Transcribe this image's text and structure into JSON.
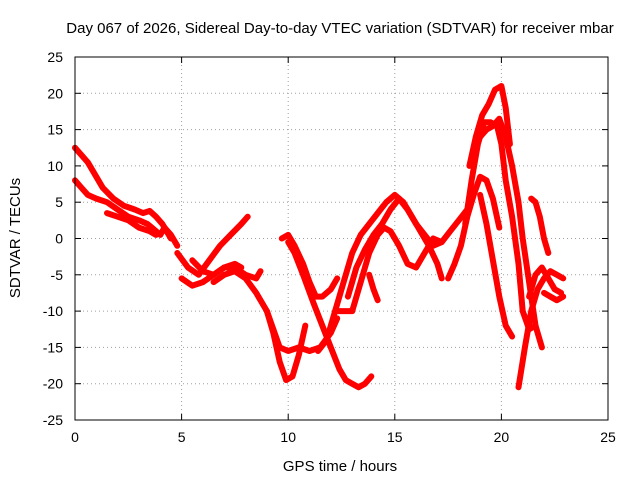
{
  "chart_data": {
    "type": "scatter",
    "title": "Day 067 of 2026, Sidereal Day-to-day VTEC variation (SDTVAR) for receiver mbar",
    "xlabel": "GPS time / hours",
    "ylabel": "SDTVAR / TECUs",
    "xlim": [
      0,
      25
    ],
    "ylim": [
      -25,
      25
    ],
    "xticks": [
      0,
      5,
      10,
      15,
      20,
      25
    ],
    "yticks": [
      -25,
      -20,
      -15,
      -10,
      -5,
      0,
      5,
      10,
      15,
      20,
      25
    ],
    "grid": true,
    "marker": "plus",
    "color": "#ff0000",
    "series": [
      {
        "x": [
          0.0,
          0.3,
          0.6,
          0.9,
          1.3,
          1.8,
          2.3,
          2.8,
          3.2,
          3.5,
          3.8,
          4.1,
          4.5
        ],
        "y": [
          12.5,
          11.5,
          10.5,
          9.0,
          7.0,
          5.5,
          4.5,
          4.0,
          3.5,
          3.8,
          3.0,
          2.0,
          0.0
        ]
      },
      {
        "x": [
          0.0,
          0.3,
          0.6,
          1.0,
          1.5,
          2.0,
          2.5,
          3.0,
          3.4,
          3.6,
          3.8,
          4.0,
          4.2,
          4.5,
          4.8
        ],
        "y": [
          8.0,
          7.0,
          6.0,
          5.5,
          5.0,
          4.0,
          3.0,
          2.5,
          2.0,
          1.5,
          1.0,
          0.5,
          1.5,
          0.5,
          -1.0
        ]
      },
      {
        "x": [
          1.5,
          2.0,
          2.5,
          3.0,
          3.5,
          3.8
        ],
        "y": [
          3.5,
          3.0,
          2.5,
          1.5,
          1.0,
          0.5
        ]
      },
      {
        "x": [
          4.8,
          5.3,
          5.8,
          6.3,
          6.8,
          7.3,
          7.8,
          8.1
        ],
        "y": [
          -2.0,
          -4.0,
          -5.0,
          -3.0,
          -1.0,
          0.5,
          2.0,
          3.0
        ]
      },
      {
        "x": [
          5.0,
          5.5,
          6.0,
          6.5,
          7.0,
          7.5,
          8.0,
          8.5,
          8.7
        ],
        "y": [
          -5.5,
          -6.5,
          -6.0,
          -5.0,
          -4.0,
          -4.0,
          -5.0,
          -5.5,
          -4.5
        ]
      },
      {
        "x": [
          5.5,
          6.0,
          6.5,
          7.0,
          7.5,
          7.8
        ],
        "y": [
          -3.0,
          -4.5,
          -5.0,
          -4.0,
          -3.5,
          -4.0
        ]
      },
      {
        "x": [
          6.5,
          7.0,
          7.5,
          8.0,
          8.5,
          9.0,
          9.3,
          9.6,
          9.9,
          10.2,
          10.5,
          10.8
        ],
        "y": [
          -6.0,
          -5.0,
          -4.5,
          -5.5,
          -7.5,
          -10.0,
          -13.0,
          -17.0,
          -19.5,
          -19.0,
          -16.0,
          -12.0
        ]
      },
      {
        "x": [
          9.0,
          9.3,
          9.6,
          10.0,
          10.5,
          11.0,
          11.5,
          12.0,
          12.3
        ],
        "y": [
          -10.0,
          -12.5,
          -15.0,
          -15.5,
          -15.0,
          -15.5,
          -15.0,
          -13.0,
          -11.0
        ]
      },
      {
        "x": [
          9.7,
          10.0,
          10.3,
          10.7,
          11.0,
          11.3,
          11.6,
          12.0,
          12.3
        ],
        "y": [
          0.0,
          0.5,
          -1.0,
          -3.5,
          -6.0,
          -8.0,
          -8.0,
          -7.0,
          -5.5
        ]
      },
      {
        "x": [
          10.0,
          10.3,
          10.7,
          11.2,
          11.6,
          12.0,
          12.4,
          12.7,
          13.0,
          13.3,
          13.6,
          13.9
        ],
        "y": [
          -0.5,
          -2.0,
          -5.0,
          -9.0,
          -12.0,
          -15.0,
          -18.0,
          -19.5,
          -20.0,
          -20.5,
          -20.0,
          -19.0
        ]
      },
      {
        "x": [
          11.4,
          11.8,
          12.2,
          12.6,
          13.0,
          13.4,
          13.8,
          14.2,
          14.6,
          15.0,
          15.4,
          15.8,
          16.2,
          16.6,
          17.0,
          17.2
        ],
        "y": [
          -15.5,
          -14.0,
          -10.0,
          -6.0,
          -2.0,
          0.5,
          2.0,
          3.5,
          5.0,
          6.0,
          5.0,
          3.0,
          1.0,
          -1.0,
          -3.5,
          -5.5
        ]
      },
      {
        "x": [
          12.2,
          12.6,
          13.0,
          13.4,
          13.8,
          14.2,
          14.5,
          14.8,
          15.2,
          15.6,
          16.0,
          16.4,
          16.8,
          17.2
        ],
        "y": [
          -10.0,
          -10.0,
          -10.0,
          -6.0,
          -2.0,
          0.5,
          1.5,
          1.0,
          -1.0,
          -3.5,
          -4.0,
          -2.0,
          0.0,
          -0.5
        ]
      },
      {
        "x": [
          12.8,
          13.2,
          13.6,
          14.0,
          14.4,
          14.8,
          15.2,
          15.6,
          16.0,
          16.4,
          16.8,
          17.2,
          17.6,
          18.0,
          18.4
        ],
        "y": [
          -8.0,
          -4.0,
          -1.5,
          0.5,
          2.0,
          4.0,
          5.5,
          4.0,
          2.0,
          0.5,
          -1.0,
          -0.5,
          1.0,
          2.5,
          4.0
        ]
      },
      {
        "x": [
          13.8,
          14.0,
          14.2
        ],
        "y": [
          -5.0,
          -7.0,
          -8.5
        ]
      },
      {
        "x": [
          17.5,
          17.8,
          18.1,
          18.4,
          18.7,
          19.0,
          19.3,
          19.6,
          19.9
        ],
        "y": [
          -5.5,
          -3.5,
          -1.0,
          3.0,
          6.0,
          8.5,
          8.0,
          5.5,
          1.5
        ]
      },
      {
        "x": [
          18.3,
          18.6,
          18.9,
          19.2,
          19.5,
          19.8,
          20.0,
          20.2,
          20.5,
          20.8,
          21.0,
          21.3,
          21.6
        ],
        "y": [
          2.0,
          8.0,
          13.0,
          16.0,
          16.0,
          15.5,
          13.0,
          8.0,
          3.0,
          -3.5,
          -10.0,
          -12.5,
          -12.0
        ]
      },
      {
        "x": [
          18.5,
          18.8,
          19.1,
          19.4,
          19.7,
          20.0,
          20.2,
          20.4
        ],
        "y": [
          10.0,
          14.0,
          17.0,
          18.5,
          20.5,
          21.0,
          18.0,
          13.0
        ]
      },
      {
        "x": [
          19.0,
          19.3,
          19.6,
          19.9,
          20.2,
          20.5,
          20.8,
          21.0,
          21.3,
          21.6,
          21.9
        ],
        "y": [
          14.0,
          15.0,
          15.5,
          16.5,
          14.0,
          10.0,
          5.0,
          0.0,
          -6.0,
          -12.0,
          -15.0
        ]
      },
      {
        "x": [
          19.0,
          19.3,
          19.6,
          19.9,
          20.2,
          20.5
        ],
        "y": [
          6.0,
          2.0,
          -3.0,
          -8.0,
          -12.0,
          -13.5
        ]
      },
      {
        "x": [
          20.8,
          21.1,
          21.4,
          21.7,
          22.0,
          22.3,
          22.6,
          22.9
        ],
        "y": [
          -20.5,
          -15.0,
          -10.0,
          -7.0,
          -5.5,
          -4.5,
          -5.0,
          -5.5
        ]
      },
      {
        "x": [
          21.3,
          21.6,
          21.9,
          22.2,
          22.5,
          22.8
        ],
        "y": [
          -8.0,
          -5.0,
          -4.0,
          -5.5,
          -7.0,
          -7.5
        ]
      },
      {
        "x": [
          21.4,
          21.6,
          21.8,
          22.0,
          22.2
        ],
        "y": [
          5.5,
          5.0,
          3.0,
          0.0,
          -2.0
        ]
      },
      {
        "x": [
          22.0,
          22.3,
          22.6,
          22.9
        ],
        "y": [
          -7.5,
          -8.0,
          -8.5,
          -8.0
        ]
      }
    ]
  }
}
